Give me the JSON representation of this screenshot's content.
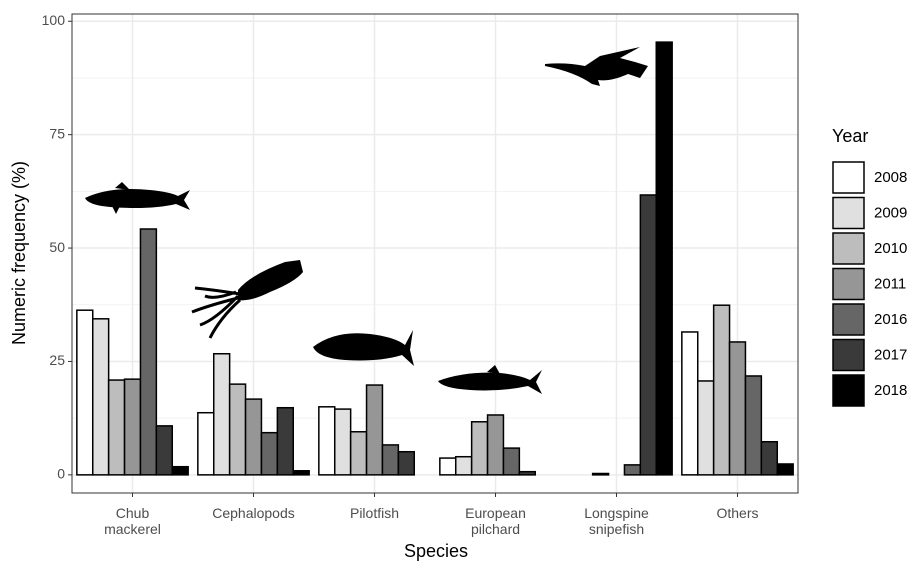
{
  "chart_data": {
    "type": "bar",
    "x_label": "Species",
    "y_label": "Numeric frequency (%)",
    "categories": [
      "Chub mackerel",
      "Cephalopods",
      "Pilotfish",
      "European pilchard",
      "Longspine snipefish",
      "Others"
    ],
    "legend_title": "Year",
    "legend_position": "right",
    "grid": true,
    "ylim": [
      -4,
      101.6
    ],
    "yticks": [
      0,
      25,
      50,
      75,
      100
    ],
    "series": [
      {
        "name": "2008",
        "color": "#ffffff",
        "values": [
          36.3,
          13.7,
          15.0,
          3.7,
          0,
          31.5
        ]
      },
      {
        "name": "2009",
        "color": "#e0e0e0",
        "values": [
          34.4,
          26.7,
          14.5,
          4.0,
          0,
          20.7
        ]
      },
      {
        "name": "2010",
        "color": "#bdbdbd",
        "values": [
          20.9,
          20.0,
          9.5,
          11.7,
          0.3,
          37.4
        ]
      },
      {
        "name": "2011",
        "color": "#969696",
        "values": [
          21.1,
          16.7,
          19.8,
          13.2,
          0,
          29.3
        ]
      },
      {
        "name": "2016",
        "color": "#666666",
        "values": [
          54.2,
          9.3,
          6.6,
          5.9,
          2.2,
          21.8
        ]
      },
      {
        "name": "2017",
        "color": "#3a3a3a",
        "values": [
          10.8,
          14.8,
          5.1,
          0.7,
          61.7,
          7.3
        ]
      },
      {
        "name": "2018",
        "color": "#000000",
        "values": [
          1.8,
          0.9,
          0,
          0,
          95.4,
          2.4
        ]
      }
    ]
  }
}
